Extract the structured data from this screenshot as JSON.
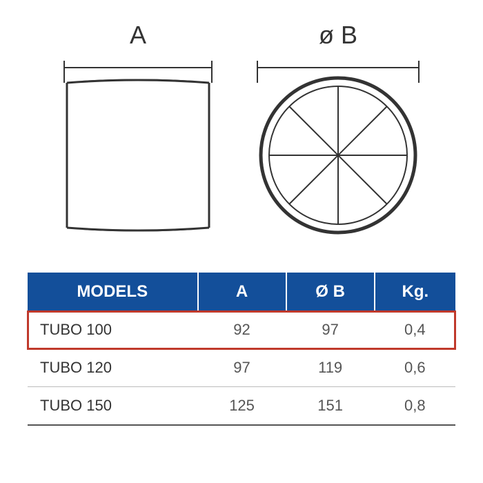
{
  "diagram": {
    "label_side": "A",
    "label_front": "ø B",
    "stroke_color": "#333333",
    "stroke_width": 2,
    "label_fontsize": 36
  },
  "table": {
    "header_bg": "#134f9a",
    "header_color": "#ffffff",
    "header_fontsize": 24,
    "cell_fontsize": 22,
    "cell_color": "#555555",
    "model_color": "#333333",
    "border_color": "#bbbbbb",
    "highlight_color": "#c0392b",
    "highlight_width": 3,
    "columns": [
      "MODELS",
      "A",
      "Ø B",
      "Kg."
    ],
    "rows": [
      {
        "model": "TUBO 100",
        "a": "92",
        "b": "97",
        "kg": "0,4",
        "highlighted": true
      },
      {
        "model": "TUBO 120",
        "a": "97",
        "b": "119",
        "kg": "0,6",
        "highlighted": false
      },
      {
        "model": "TUBO 150",
        "a": "125",
        "b": "151",
        "kg": "0,8",
        "highlighted": false
      }
    ]
  }
}
